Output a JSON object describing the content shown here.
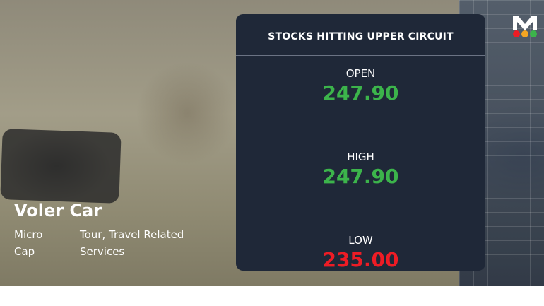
{
  "card": {
    "title": "STOCKS HITTING UPPER CIRCUIT",
    "rows": [
      {
        "label": "OPEN",
        "value": "247.90",
        "color": "#3cb44b"
      },
      {
        "label": "HIGH",
        "value": "247.90",
        "color": "#3cb44b"
      },
      {
        "label": "LOW",
        "value": "235.00",
        "color": "#ee1c25"
      }
    ]
  },
  "company": {
    "name": "Voler Car",
    "cap_line1": "Micro",
    "cap_line2": "Cap",
    "sector_line1": "Tour, Travel Related",
    "sector_line2": "Services"
  },
  "logo": {
    "letter": "M",
    "dot_colors": [
      "#ee1c25",
      "#f5a623",
      "#3cb44b"
    ]
  }
}
